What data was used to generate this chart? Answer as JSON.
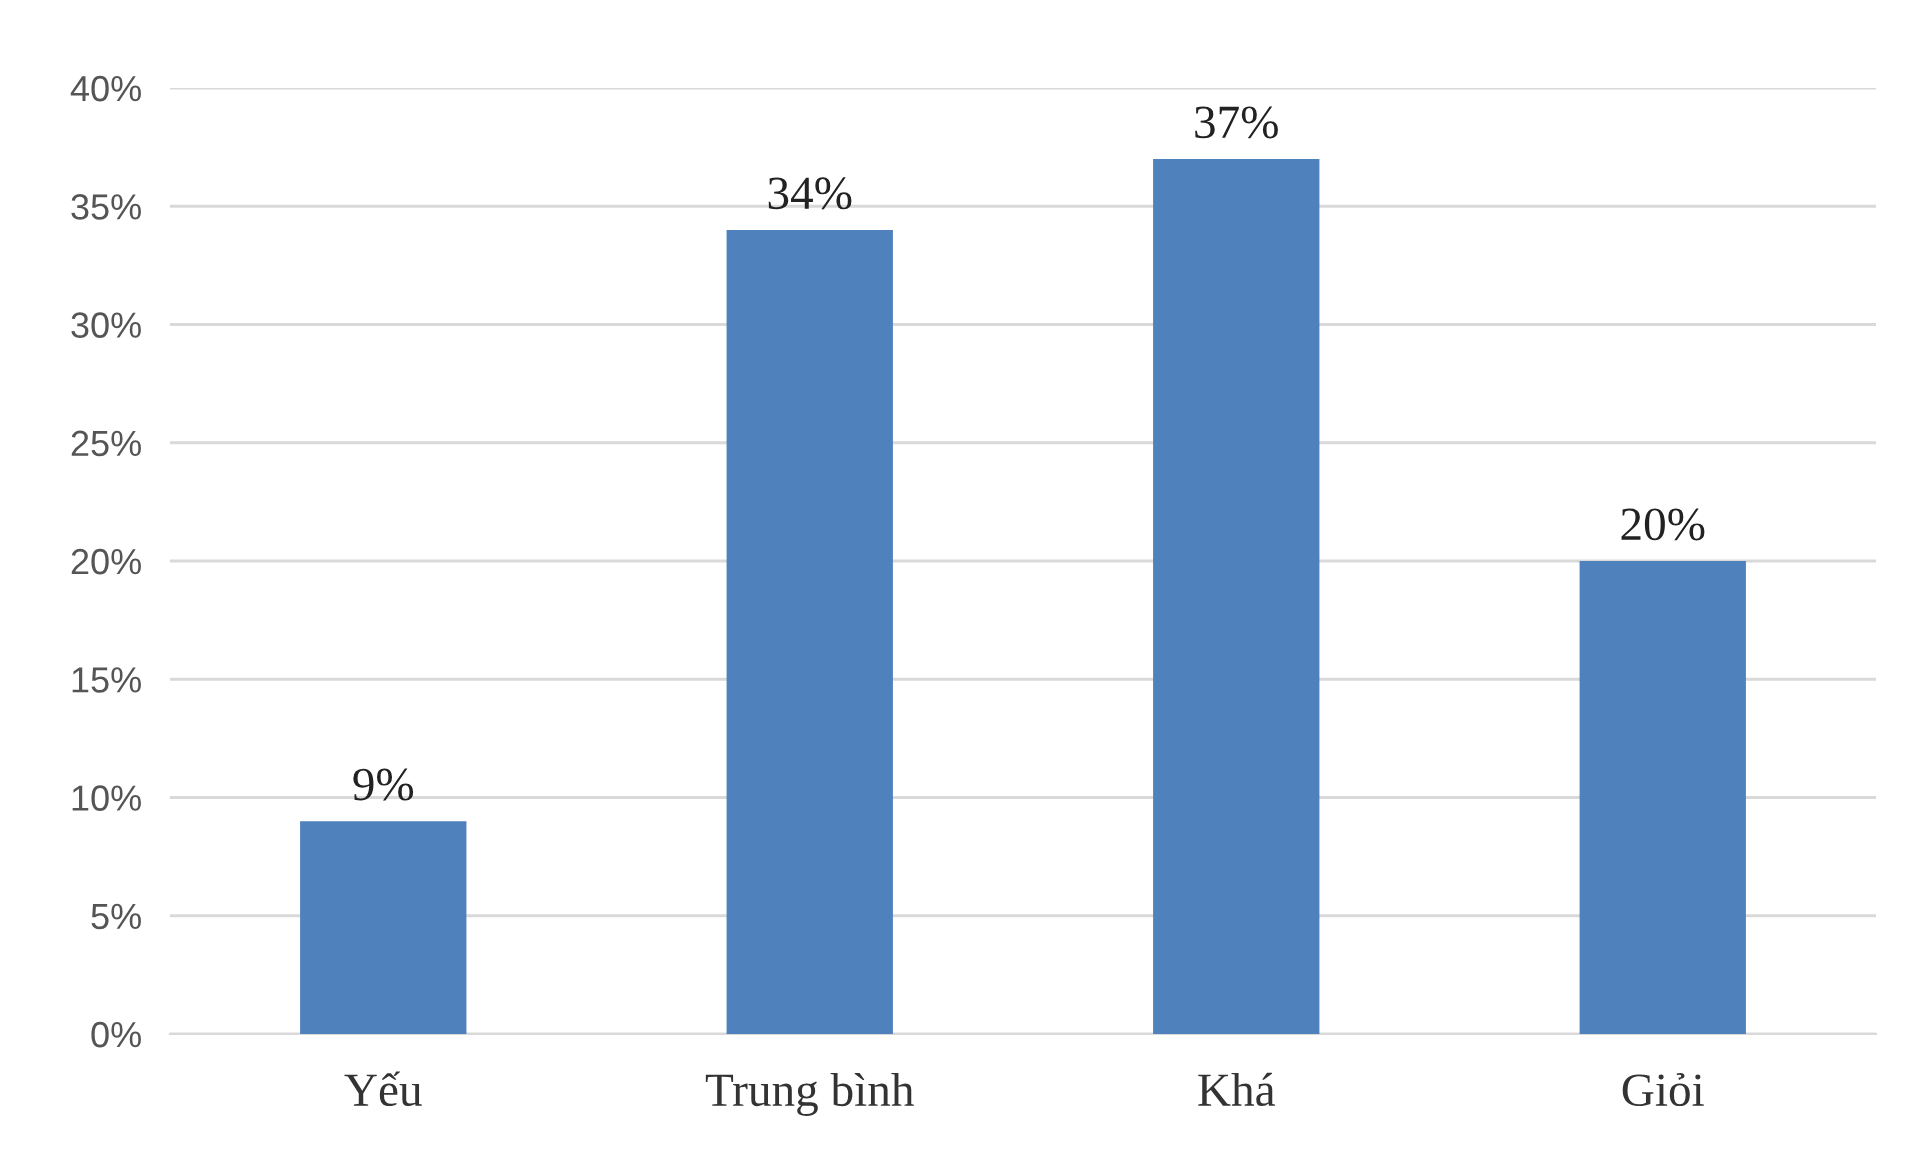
{
  "chart_data": {
    "type": "bar",
    "categories": [
      "Yếu",
      "Trung bình",
      "Khá",
      "Giỏi"
    ],
    "values": [
      9,
      34,
      37,
      20
    ],
    "value_labels": [
      "9%",
      "34%",
      "37%",
      "20%"
    ],
    "color": "#4f81bd",
    "ylim": [
      0,
      40
    ],
    "yticks": [
      {
        "value": 0,
        "label": "0%"
      },
      {
        "value": 5,
        "label": "5%"
      },
      {
        "value": 10,
        "label": "10%"
      },
      {
        "value": 15,
        "label": "15%"
      },
      {
        "value": 20,
        "label": "20%"
      },
      {
        "value": 25,
        "label": "25%"
      },
      {
        "value": 30,
        "label": "30%"
      },
      {
        "value": 35,
        "label": "35%"
      },
      {
        "value": 40,
        "label": "40%"
      }
    ],
    "grid": "y",
    "legend": false
  }
}
